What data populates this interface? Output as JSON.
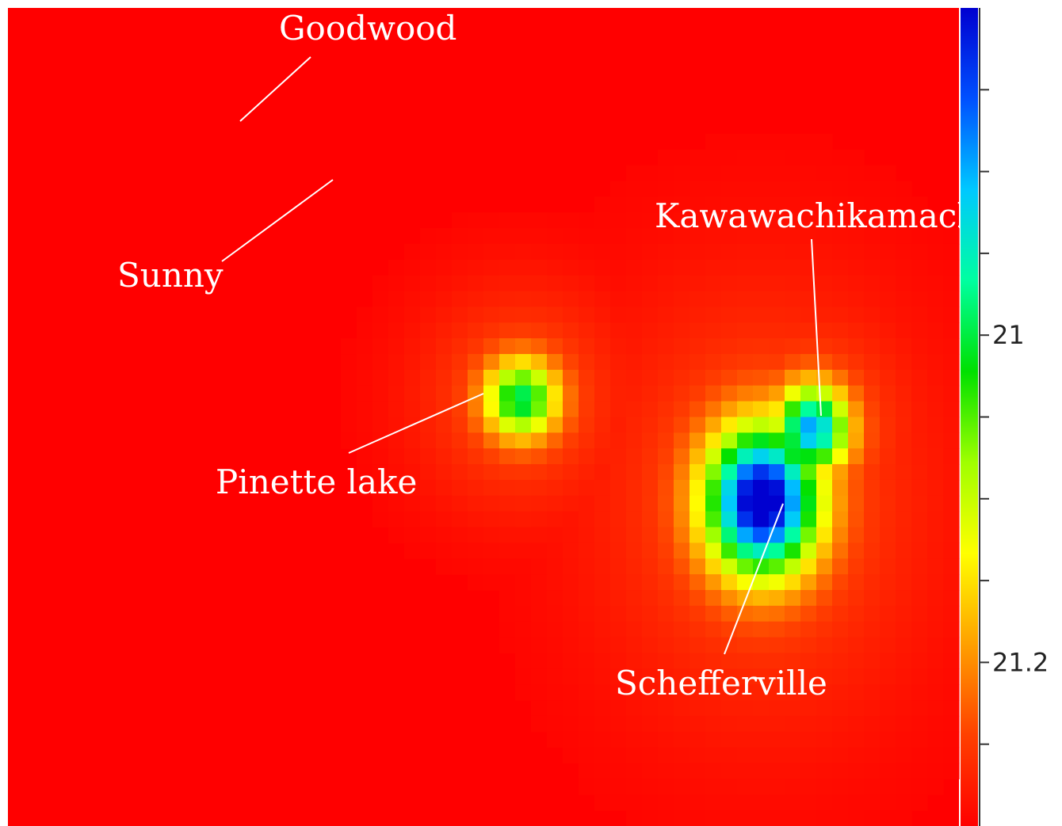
{
  "chart_data": {
    "type": "heatmap",
    "title": "",
    "xlabel": "",
    "ylabel": "",
    "grid": false,
    "colorbar": {
      "min": 20.8,
      "max": 21.3,
      "reversed": true,
      "ticks": [
        20.85,
        20.9,
        20.95,
        21.0,
        21.05,
        21.1,
        21.15,
        21.2,
        21.25
      ],
      "tick_labels": [
        "",
        "",
        "",
        "21",
        "",
        "",
        "",
        "21.2",
        ""
      ],
      "colormap": [
        "#0000d0",
        "#0050ff",
        "#00c8ff",
        "#00ffa0",
        "#00e000",
        "#a0ff00",
        "#ffff00",
        "#ffa000",
        "#ff4000",
        "#ff0000"
      ]
    },
    "background_value": 21.3,
    "hotspots": [
      {
        "name": "Pinette lake",
        "cx": 0.54,
        "cy": 0.478,
        "rx": 0.04,
        "ry": 0.05,
        "peak": 21.05,
        "core": 0.035
      },
      {
        "name": "Kawawachikamach",
        "cx": 0.845,
        "cy": 0.515,
        "rx": 0.04,
        "ry": 0.055,
        "peak": 20.95,
        "core": 0.03
      },
      {
        "name": "Schefferville",
        "cx": 0.793,
        "cy": 0.603,
        "rx": 0.062,
        "ry": 0.095,
        "peak": 20.82,
        "core": 0.04
      }
    ],
    "annotations": [
      {
        "text": "Goodwood"
      },
      {
        "text": "Sunny"
      },
      {
        "text": "Kawawachikamach"
      },
      {
        "text": "Pinette lake"
      },
      {
        "text": "Schefferville"
      }
    ]
  }
}
